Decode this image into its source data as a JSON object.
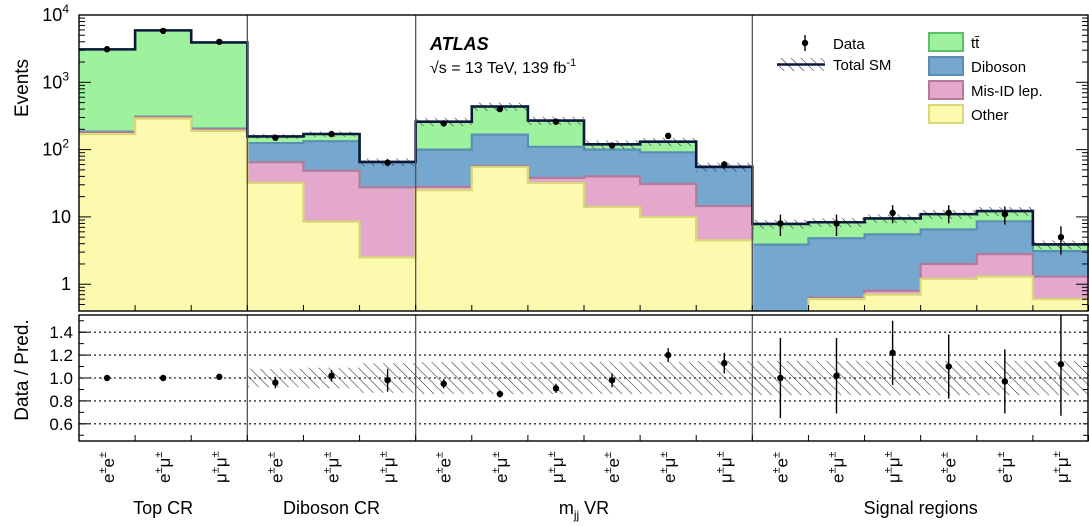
{
  "colors": {
    "ttbar": "#9ef29e",
    "diboson": "#75a7cf",
    "misid": "#e3a8cb",
    "other": "#fbfaae",
    "ttbar_edge": "#5cbf6b",
    "diboson_edge": "#5b8fb2",
    "misid_edge": "#b27b9b",
    "other_edge": "#d9d876",
    "total": "#0b1a3c"
  },
  "chart_data": {
    "type": "bar",
    "title": "",
    "experiment": "ATLAS",
    "energy_label": "s = 13 TeV, 139 fb",
    "sqrt_symbol": "√",
    "lumi_exponent": "-1",
    "top_ylabel": "Events",
    "ratio_ylabel": "Data / Pred.",
    "top_scale": "log",
    "top_ylim": [
      0.4,
      10000
    ],
    "ratio_ylim": [
      0.45,
      1.55
    ],
    "top_yticks": [
      {
        "value": 10000,
        "label": "10",
        "exp": "4"
      },
      {
        "value": 1000,
        "label": "10",
        "exp": "3"
      },
      {
        "value": 100,
        "label": "10",
        "exp": "2"
      },
      {
        "value": 10,
        "label": "10",
        "exp": ""
      },
      {
        "value": 1,
        "label": "1",
        "exp": ""
      }
    ],
    "ratio_yticks": [
      {
        "value": 0.6,
        "label": "0.6"
      },
      {
        "value": 0.8,
        "label": "0.8"
      },
      {
        "value": 1.0,
        "label": "1.0"
      },
      {
        "value": 1.2,
        "label": "1.2"
      },
      {
        "value": 1.4,
        "label": "1.4"
      }
    ],
    "categories": [
      "e±e±",
      "e±μ±",
      "μ±μ±",
      "e±e±",
      "e±μ±",
      "μ±μ±",
      "e±e±",
      "e±μ±",
      "μ±μ±",
      "e±e±",
      "e±μ±",
      "μ±μ±",
      "e±e±",
      "e±μ±",
      "μ±μ±",
      "e±e±",
      "e±μ±",
      "μ±μ±"
    ],
    "bin_labels": [
      {
        "base": "ee",
        "sup": [
          "±",
          "±"
        ]
      },
      {
        "base": "eμ",
        "sup": [
          "±",
          "±"
        ]
      },
      {
        "base": "μμ",
        "sup": [
          "±",
          "±"
        ]
      },
      {
        "base": "ee",
        "sup": [
          "±",
          "±"
        ]
      },
      {
        "base": "eμ",
        "sup": [
          "±",
          "±"
        ]
      },
      {
        "base": "μμ",
        "sup": [
          "±",
          "±"
        ]
      },
      {
        "base": "ee",
        "sup": [
          "±",
          "±"
        ]
      },
      {
        "base": "eμ",
        "sup": [
          "±",
          "±"
        ]
      },
      {
        "base": "μμ",
        "sup": [
          "±",
          "±"
        ]
      },
      {
        "base": "ee",
        "sup": [
          "±",
          "±"
        ]
      },
      {
        "base": "eμ",
        "sup": [
          "±",
          "±"
        ]
      },
      {
        "base": "μμ",
        "sup": [
          "±",
          "±"
        ]
      },
      {
        "base": "ee",
        "sup": [
          "±",
          "±"
        ]
      },
      {
        "base": "eμ",
        "sup": [
          "±",
          "±"
        ]
      },
      {
        "base": "μμ",
        "sup": [
          "±",
          "±"
        ]
      },
      {
        "base": "ee",
        "sup": [
          "±",
          "±"
        ]
      },
      {
        "base": "eμ",
        "sup": [
          "±",
          "±"
        ]
      },
      {
        "base": "μμ",
        "sup": [
          "±",
          "±"
        ]
      }
    ],
    "regions": [
      {
        "label": "Top CR",
        "sub": "",
        "suffix": "",
        "bins": [
          0,
          2
        ]
      },
      {
        "label": "Diboson CR",
        "sub": "",
        "suffix": "",
        "bins": [
          3,
          5
        ]
      },
      {
        "label": "m",
        "sub": "jj",
        "suffix": " VR",
        "bins": [
          6,
          11
        ]
      },
      {
        "label": "Signal regions",
        "sub": "",
        "suffix": "",
        "bins": [
          12,
          17
        ]
      }
    ],
    "series": [
      {
        "name": "Other",
        "key": "other",
        "values": [
          170,
          290,
          190,
          32,
          8.5,
          2.5,
          25,
          55,
          32,
          14,
          10,
          4.5,
          0.35,
          0.6,
          0.7,
          1.2,
          1.3,
          0.6
        ]
      },
      {
        "name": "Mis-ID lep.",
        "key": "misid",
        "values": [
          10,
          15,
          10,
          33,
          40,
          25,
          3,
          2,
          6,
          26,
          21,
          10,
          0.02,
          0.03,
          0.1,
          0.8,
          1.5,
          0.7
        ]
      },
      {
        "name": "Diboson",
        "key": "diboson",
        "values": [
          5,
          5,
          5,
          60,
          85,
          37,
          72,
          110,
          72,
          60,
          60,
          40,
          3.5,
          4.2,
          4.7,
          4.5,
          5.8,
          1.8
        ]
      },
      {
        "name": "tt̄",
        "key": "ttbar",
        "values": [
          2900,
          5600,
          3700,
          32,
          37,
          1,
          160,
          270,
          160,
          20,
          40,
          1,
          4.0,
          3.5,
          4.0,
          4.5,
          3.6,
          0.8
        ]
      }
    ],
    "total_label": "Total SM",
    "data_label": "Data",
    "data": [
      3100,
      5800,
      4000,
      150,
      170,
      64,
      245,
      400,
      260,
      115,
      160,
      60,
      8,
      8,
      11.5,
      11.5,
      11,
      5
    ],
    "data_err": [
      0.02,
      0.013,
      0.016,
      0.08,
      0.075,
      0.12,
      0.06,
      0.05,
      0.06,
      0.09,
      0.08,
      0.13,
      0.35,
      0.35,
      0.3,
      0.3,
      0.3,
      0.45
    ],
    "ratio": [
      1.0,
      1.0,
      1.01,
      0.96,
      1.02,
      0.98,
      0.95,
      0.86,
      0.91,
      0.98,
      1.2,
      1.13,
      1.0,
      1.02,
      1.22,
      1.1,
      0.97,
      1.12
    ],
    "ratio_err": [
      0.01,
      0.01,
      0.01,
      0.05,
      0.05,
      0.1,
      0.04,
      0.03,
      0.04,
      0.06,
      0.06,
      0.09,
      0.35,
      0.33,
      0.28,
      0.28,
      0.28,
      0.45
    ],
    "syst_band": [
      0.01,
      0.01,
      0.01,
      0.08,
      0.09,
      0.13,
      0.14,
      0.14,
      0.14,
      0.14,
      0.14,
      0.15,
      0.15,
      0.15,
      0.15,
      0.15,
      0.15,
      0.15
    ],
    "legend": [
      {
        "key": "ttbar",
        "label": "tt̄"
      },
      {
        "key": "diboson",
        "label": "Diboson"
      },
      {
        "key": "misid",
        "label": "Mis-ID lep."
      },
      {
        "key": "other",
        "label": "Other"
      }
    ],
    "legend_position": "top-right"
  }
}
